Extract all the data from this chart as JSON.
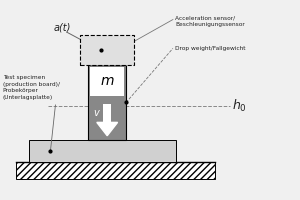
{
  "bg_color": "#f0f0f0",
  "weight_color": "#888888",
  "sensor_box_color": "#e0e0e0",
  "board_color": "#d0d0d0",
  "text_color": "#222222",
  "line_color": "#555555",
  "labels": {
    "at": "a(t)",
    "accel": "Acceleration sensor/\nBeschleunigungssensor",
    "drop": "Drop weight/Fallgewicht",
    "specimen": "Test specimen\n(production board)/\nProbekörper\n(Unterlagsplatte)",
    "h0": "$h_0$",
    "m": "$m$",
    "v": "$v$"
  }
}
